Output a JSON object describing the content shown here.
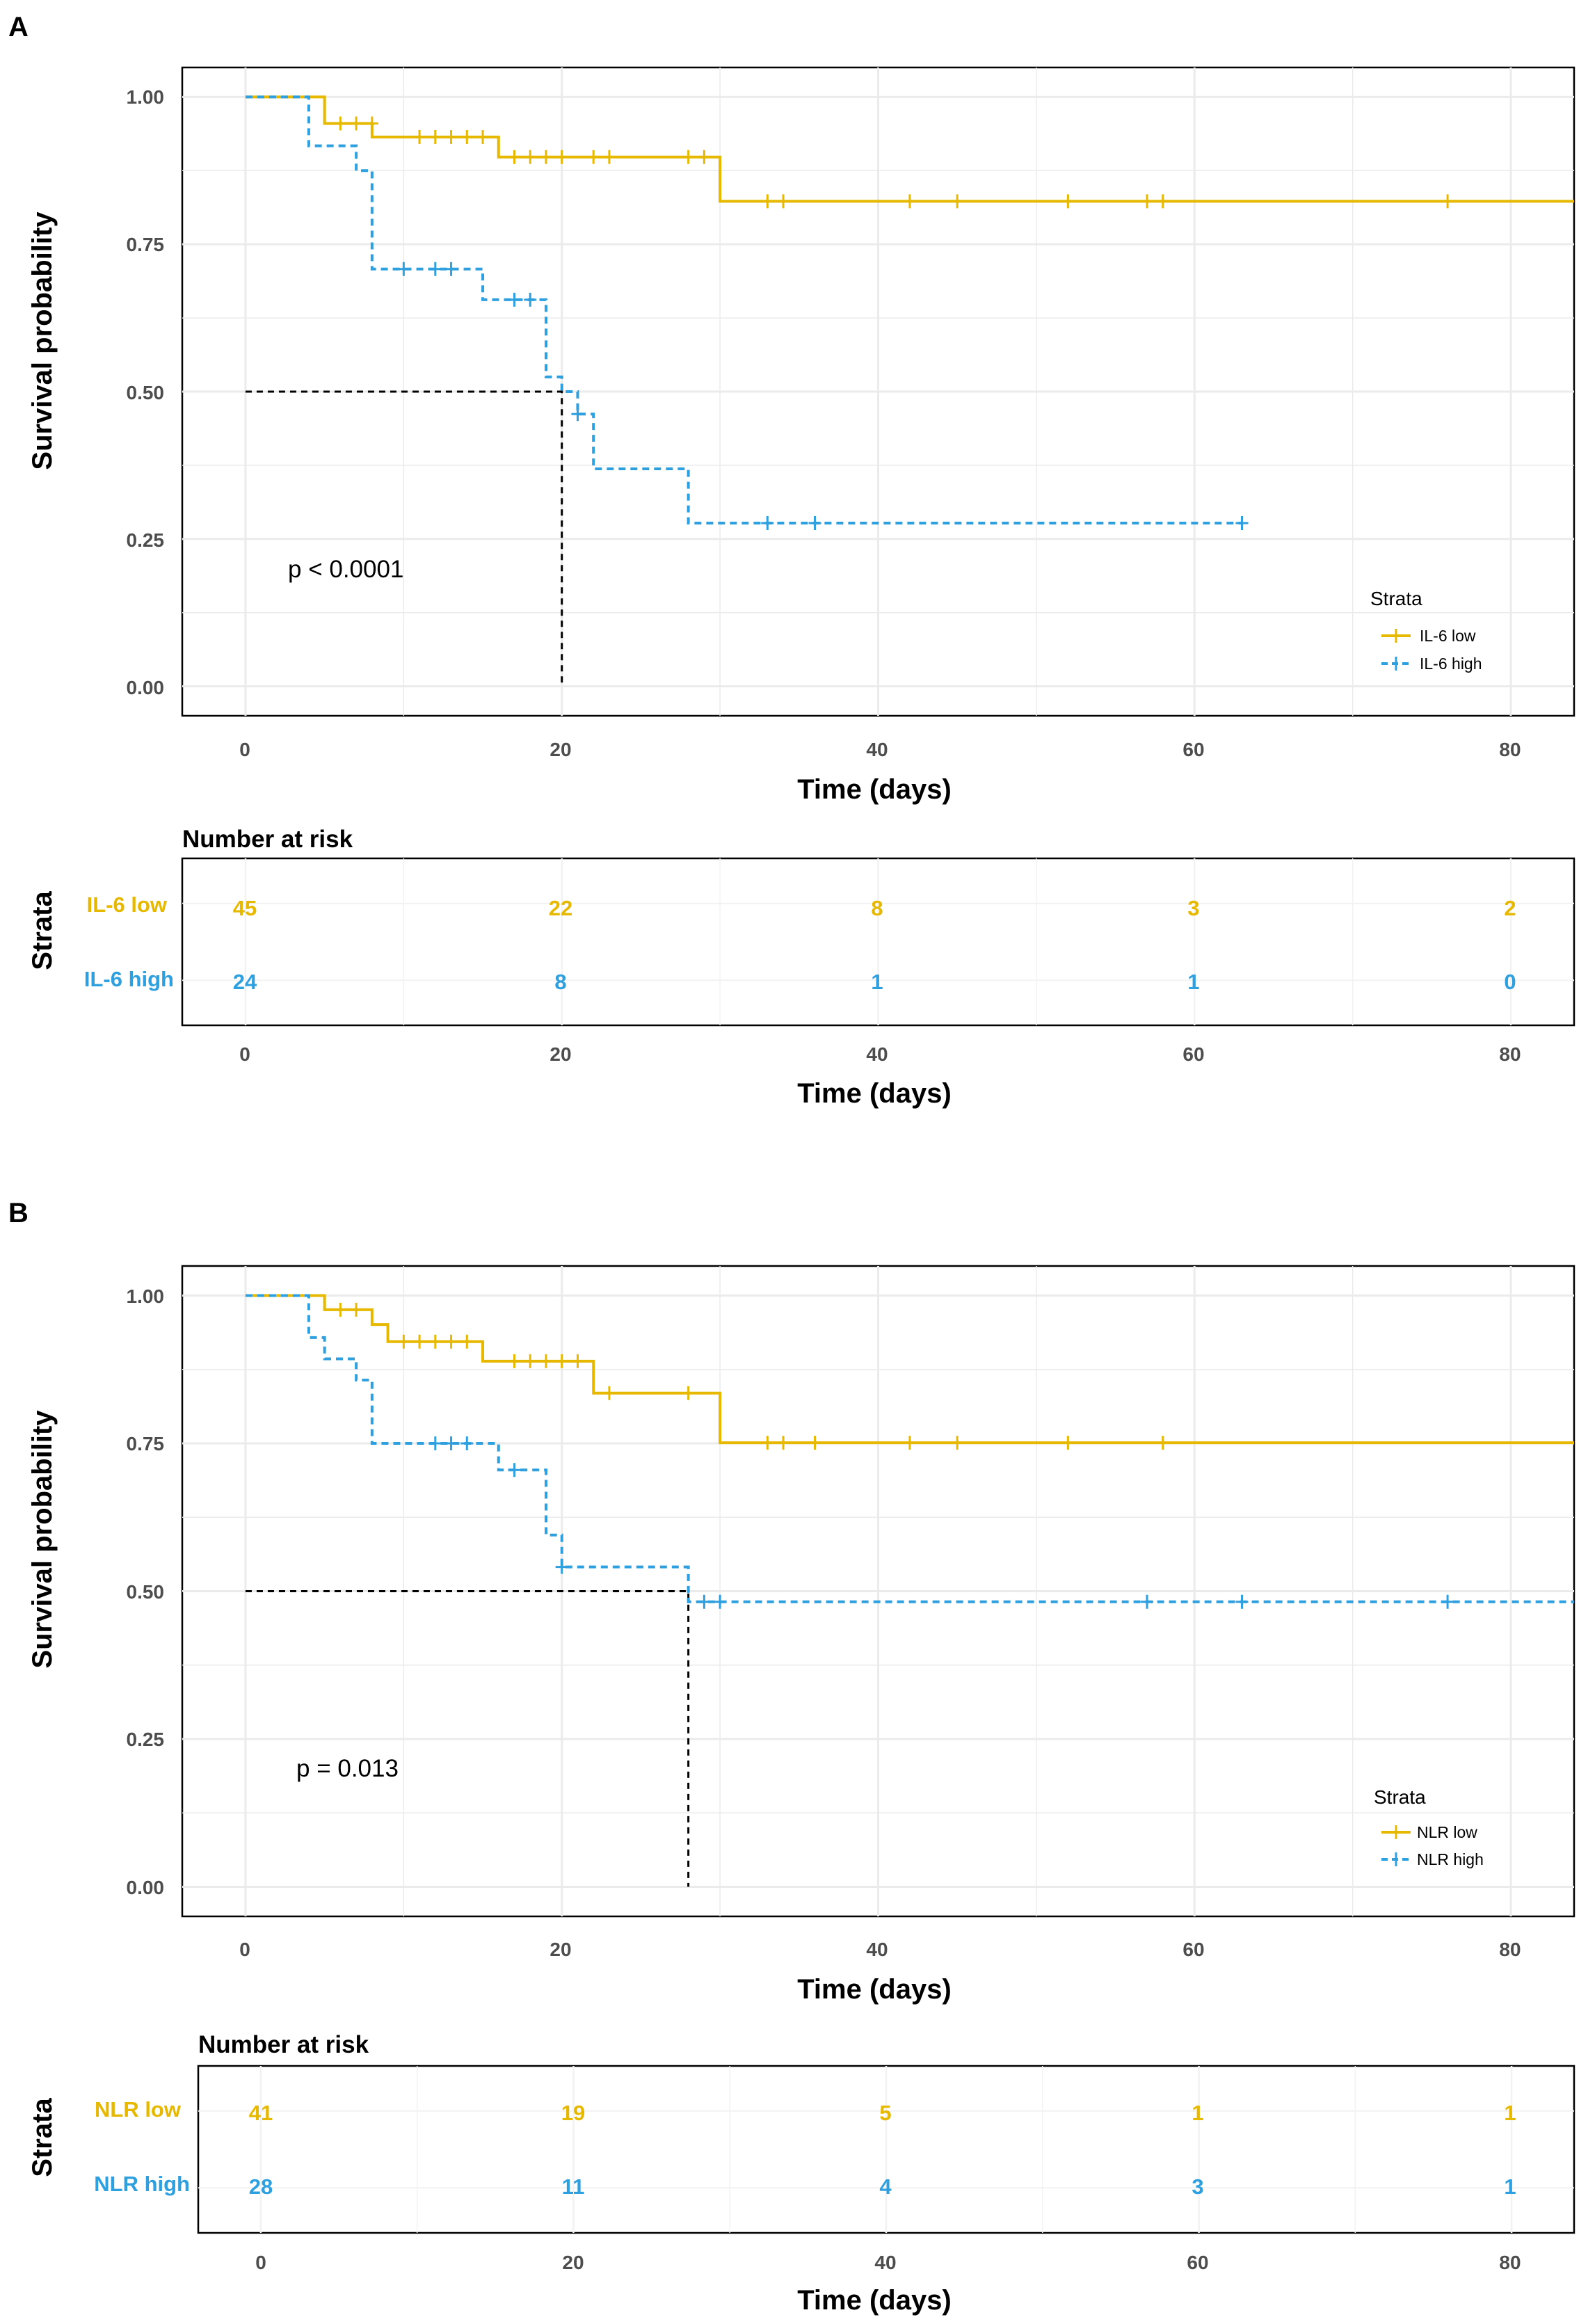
{
  "panels": [
    {
      "letter": "A",
      "ylabel": "Survival probability",
      "xlabel": "Time (days)",
      "y_ticks": [
        "1.00",
        "0.75",
        "0.50",
        "0.25",
        "0.00"
      ],
      "x_ticks": [
        "0",
        "20",
        "40",
        "60",
        "80"
      ],
      "pvalue": "p < 0.0001",
      "legend_title": "Strata",
      "strata": [
        {
          "name": "IL-6 low",
          "color": "#E7B800"
        },
        {
          "name": "IL-6 high",
          "color": "#2E9FDF"
        }
      ],
      "risk_title": "Number at risk",
      "risk_strata_title": "Strata",
      "risk_xlabel": "Time (days)",
      "risk_rows": [
        {
          "label": "IL-6 low",
          "values": [
            "45",
            "22",
            "8",
            "3",
            "2"
          ]
        },
        {
          "label": "IL-6 high",
          "values": [
            "24",
            "8",
            "1",
            "1",
            "0"
          ]
        }
      ]
    },
    {
      "letter": "B",
      "ylabel": "Survival probability",
      "xlabel": "Time (days)",
      "y_ticks": [
        "1.00",
        "0.75",
        "0.50",
        "0.25",
        "0.00"
      ],
      "x_ticks": [
        "0",
        "20",
        "40",
        "60",
        "80"
      ],
      "pvalue": "p = 0.013",
      "legend_title": "Strata",
      "strata": [
        {
          "name": "NLR low",
          "color": "#E7B800"
        },
        {
          "name": "NLR high",
          "color": "#2E9FDF"
        }
      ],
      "risk_title": "Number at risk",
      "risk_strata_title": "Strata",
      "risk_xlabel": "Time (days)",
      "risk_rows": [
        {
          "label": "NLR low",
          "values": [
            "41",
            "19",
            "5",
            "1",
            "1"
          ]
        },
        {
          "label": "NLR high",
          "values": [
            "28",
            "11",
            "4",
            "3",
            "1"
          ]
        }
      ]
    }
  ],
  "chart_data": [
    {
      "type": "line",
      "subtype": "kaplan-meier",
      "title": "A",
      "xlabel": "Time (days)",
      "ylabel": "Survival probability",
      "xlim": [
        -4,
        84
      ],
      "ylim": [
        -0.05,
        1.05
      ],
      "median_line": {
        "x": 20,
        "y": 0.5
      },
      "series": [
        {
          "name": "IL-6 low",
          "color": "#E7B800",
          "dash": "solid",
          "steps": [
            [
              0,
              1.0
            ],
            [
              5,
              0.955
            ],
            [
              8,
              0.932
            ],
            [
              16,
              0.898
            ],
            [
              28,
              0.898
            ],
            [
              30,
              0.823
            ],
            [
              84,
              0.823
            ]
          ],
          "censors": [
            [
              6,
              0.955
            ],
            [
              7,
              0.955
            ],
            [
              8,
              0.955
            ],
            [
              11,
              0.932
            ],
            [
              12,
              0.932
            ],
            [
              13,
              0.932
            ],
            [
              14,
              0.932
            ],
            [
              15,
              0.932
            ],
            [
              17,
              0.898
            ],
            [
              18,
              0.898
            ],
            [
              19,
              0.898
            ],
            [
              20,
              0.898
            ],
            [
              22,
              0.898
            ],
            [
              23,
              0.898
            ],
            [
              28,
              0.898
            ],
            [
              29,
              0.898
            ],
            [
              33,
              0.823
            ],
            [
              34,
              0.823
            ],
            [
              42,
              0.823
            ],
            [
              45,
              0.823
            ],
            [
              52,
              0.823
            ],
            [
              57,
              0.823
            ],
            [
              58,
              0.823
            ],
            [
              76,
              0.823
            ]
          ]
        },
        {
          "name": "IL-6 high",
          "color": "#2E9FDF",
          "dash": "dashed",
          "steps": [
            [
              0,
              1.0
            ],
            [
              4,
              0.917
            ],
            [
              7,
              0.875
            ],
            [
              8,
              0.708
            ],
            [
              15,
              0.656
            ],
            [
              19,
              0.525
            ],
            [
              20,
              0.5
            ],
            [
              21,
              0.462
            ],
            [
              22,
              0.369
            ],
            [
              28,
              0.277
            ],
            [
              63,
              0.277
            ]
          ],
          "censors": [
            [
              10,
              0.708
            ],
            [
              12,
              0.708
            ],
            [
              13,
              0.708
            ],
            [
              17,
              0.656
            ],
            [
              18,
              0.656
            ],
            [
              21,
              0.462
            ],
            [
              33,
              0.277
            ],
            [
              36,
              0.277
            ],
            [
              63,
              0.277
            ]
          ]
        }
      ],
      "annotations": [
        "p < 0.0001"
      ],
      "risk_table": {
        "times": [
          0,
          20,
          40,
          60,
          80
        ],
        "rows": [
          {
            "name": "IL-6 low",
            "values": [
              45,
              22,
              8,
              3,
              2
            ]
          },
          {
            "name": "IL-6 high",
            "values": [
              24,
              8,
              1,
              1,
              0
            ]
          }
        ]
      }
    },
    {
      "type": "line",
      "subtype": "kaplan-meier",
      "title": "B",
      "xlabel": "Time (days)",
      "ylabel": "Survival probability",
      "xlim": [
        -4,
        84
      ],
      "ylim": [
        -0.05,
        1.05
      ],
      "median_line": {
        "x": 28,
        "y": 0.5
      },
      "series": [
        {
          "name": "NLR low",
          "color": "#E7B800",
          "dash": "solid",
          "steps": [
            [
              0,
              1.0
            ],
            [
              5,
              0.976
            ],
            [
              8,
              0.951
            ],
            [
              9,
              0.922
            ],
            [
              15,
              0.889
            ],
            [
              22,
              0.835
            ],
            [
              30,
              0.751
            ],
            [
              84,
              0.751
            ]
          ],
          "censors": [
            [
              6,
              0.976
            ],
            [
              7,
              0.976
            ],
            [
              10,
              0.922
            ],
            [
              11,
              0.922
            ],
            [
              12,
              0.922
            ],
            [
              13,
              0.922
            ],
            [
              14,
              0.922
            ],
            [
              17,
              0.889
            ],
            [
              18,
              0.889
            ],
            [
              19,
              0.889
            ],
            [
              20,
              0.889
            ],
            [
              21,
              0.889
            ],
            [
              23,
              0.835
            ],
            [
              28,
              0.835
            ],
            [
              33,
              0.751
            ],
            [
              34,
              0.751
            ],
            [
              36,
              0.751
            ],
            [
              42,
              0.751
            ],
            [
              45,
              0.751
            ],
            [
              52,
              0.751
            ],
            [
              58,
              0.751
            ]
          ]
        },
        {
          "name": "NLR high",
          "color": "#2E9FDF",
          "dash": "dashed",
          "steps": [
            [
              0,
              1.0
            ],
            [
              4,
              0.929
            ],
            [
              5,
              0.893
            ],
            [
              7,
              0.857
            ],
            [
              8,
              0.75
            ],
            [
              16,
              0.705
            ],
            [
              19,
              0.595
            ],
            [
              20,
              0.541
            ],
            [
              28,
              0.482
            ],
            [
              84,
              0.482
            ]
          ],
          "censors": [
            [
              12,
              0.75
            ],
            [
              13,
              0.75
            ],
            [
              14,
              0.75
            ],
            [
              17,
              0.705
            ],
            [
              20,
              0.541
            ],
            [
              29,
              0.482
            ],
            [
              30,
              0.482
            ],
            [
              57,
              0.482
            ],
            [
              63,
              0.482
            ],
            [
              76,
              0.482
            ]
          ]
        }
      ],
      "annotations": [
        "p = 0.013"
      ],
      "risk_table": {
        "times": [
          0,
          20,
          40,
          60,
          80
        ],
        "rows": [
          {
            "name": "NLR low",
            "values": [
              41,
              19,
              5,
              1,
              1
            ]
          },
          {
            "name": "NLR high",
            "values": [
              28,
              11,
              4,
              3,
              1
            ]
          }
        ]
      }
    }
  ]
}
